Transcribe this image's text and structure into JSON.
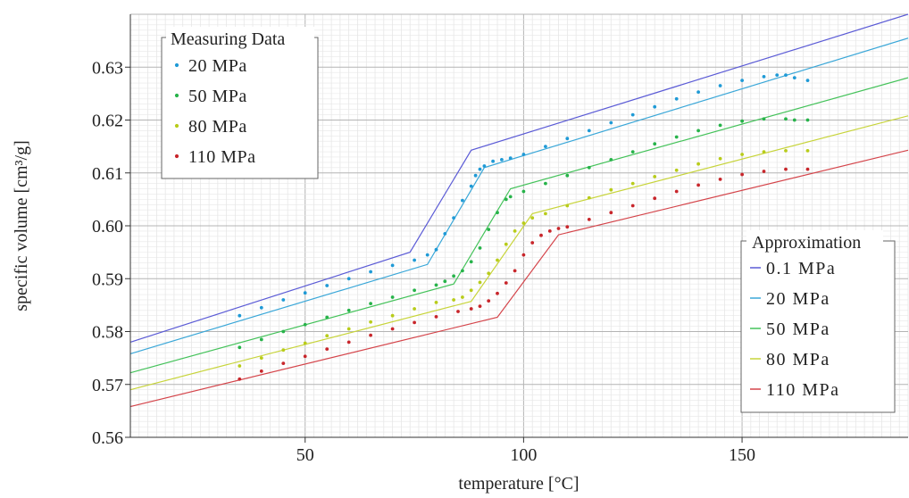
{
  "chart_data": {
    "type": "scatter",
    "xlabel": "temperature [°C]",
    "ylabel": "specific volume [cm³/g]",
    "xlim": [
      10,
      188
    ],
    "ylim": [
      0.56,
      0.64
    ],
    "x_ticks": [
      50,
      100,
      150
    ],
    "y_ticks": [
      0.56,
      0.57,
      0.58,
      0.59,
      0.6,
      0.61,
      0.62,
      0.63
    ],
    "y_tick_labels": [
      "0.56",
      "0.57",
      "0.58",
      "0.59",
      "0.60",
      "0.61",
      "0.62",
      "0.63"
    ],
    "grid": true,
    "legends": {
      "measuring": {
        "title": "Measuring Data",
        "position": "top-left"
      },
      "approximation": {
        "title": "Approximation",
        "position": "bottom-right"
      }
    },
    "measured_series": [
      {
        "name": "20 MPa",
        "color": "#1f9ad6",
        "x": [
          35,
          40,
          45,
          50,
          55,
          60,
          65,
          70,
          75,
          78,
          80,
          82,
          84,
          86,
          88,
          89,
          90,
          91,
          93,
          95,
          97,
          100,
          105,
          110,
          115,
          120,
          125,
          130,
          135,
          140,
          145,
          150,
          155,
          158,
          160,
          162,
          165
        ],
        "y": [
          0.583,
          0.5845,
          0.586,
          0.5873,
          0.5887,
          0.59,
          0.5913,
          0.5925,
          0.5935,
          0.5945,
          0.5955,
          0.5985,
          0.6015,
          0.6048,
          0.6075,
          0.6095,
          0.6107,
          0.6113,
          0.6122,
          0.6125,
          0.6128,
          0.6135,
          0.615,
          0.6165,
          0.618,
          0.6195,
          0.621,
          0.6225,
          0.624,
          0.6253,
          0.6265,
          0.6275,
          0.6282,
          0.6285,
          0.6285,
          0.628,
          0.6275
        ]
      },
      {
        "name": "50 MPa",
        "color": "#27b34a",
        "x": [
          35,
          40,
          45,
          50,
          55,
          60,
          65,
          70,
          75,
          80,
          82,
          84,
          86,
          88,
          90,
          92,
          94,
          96,
          97,
          100,
          105,
          110,
          115,
          120,
          125,
          130,
          135,
          140,
          145,
          150,
          155,
          160,
          162,
          165
        ],
        "y": [
          0.577,
          0.5785,
          0.58,
          0.5813,
          0.5827,
          0.584,
          0.5853,
          0.5865,
          0.5878,
          0.5888,
          0.5895,
          0.5905,
          0.5915,
          0.5932,
          0.5958,
          0.5993,
          0.6025,
          0.605,
          0.6055,
          0.6065,
          0.608,
          0.6095,
          0.611,
          0.6125,
          0.614,
          0.6155,
          0.6168,
          0.618,
          0.619,
          0.6198,
          0.6202,
          0.6202,
          0.62,
          0.62
        ]
      },
      {
        "name": "80 MPa",
        "color": "#b8cc1a",
        "x": [
          35,
          40,
          45,
          50,
          55,
          60,
          65,
          70,
          75,
          80,
          84,
          86,
          88,
          90,
          92,
          94,
          96,
          98,
          100,
          102,
          105,
          110,
          115,
          120,
          125,
          130,
          135,
          140,
          145,
          150,
          155,
          160,
          165
        ],
        "y": [
          0.5735,
          0.575,
          0.5765,
          0.5778,
          0.5792,
          0.5805,
          0.5818,
          0.583,
          0.5843,
          0.5855,
          0.586,
          0.5865,
          0.5878,
          0.5893,
          0.591,
          0.5935,
          0.5965,
          0.599,
          0.6005,
          0.6015,
          0.6023,
          0.6038,
          0.6053,
          0.6068,
          0.608,
          0.6093,
          0.6105,
          0.6117,
          0.6127,
          0.6135,
          0.614,
          0.6142,
          0.6142
        ]
      },
      {
        "name": "110 MPa",
        "color": "#c8262b",
        "x": [
          35,
          40,
          45,
          50,
          55,
          60,
          65,
          70,
          75,
          80,
          85,
          88,
          90,
          92,
          94,
          96,
          98,
          100,
          102,
          104,
          106,
          108,
          110,
          115,
          120,
          125,
          130,
          135,
          140,
          145,
          150,
          155,
          160,
          165
        ],
        "y": [
          0.571,
          0.5725,
          0.574,
          0.5753,
          0.5767,
          0.578,
          0.5793,
          0.5805,
          0.5817,
          0.5828,
          0.5838,
          0.5843,
          0.5848,
          0.5858,
          0.5872,
          0.5892,
          0.5915,
          0.5945,
          0.5968,
          0.5982,
          0.599,
          0.5995,
          0.5998,
          0.6012,
          0.6025,
          0.6038,
          0.6052,
          0.6065,
          0.6077,
          0.6088,
          0.6097,
          0.6103,
          0.6107,
          0.6107
        ]
      }
    ],
    "approximation_series": [
      {
        "name": "0.1 MPa",
        "color": "#5b5bd6",
        "x": [
          10,
          74,
          88,
          188
        ],
        "y": [
          0.578,
          0.595,
          0.6143,
          0.64
        ]
      },
      {
        "name": "20 MPa",
        "color": "#3aa7d8",
        "x": [
          10,
          78,
          91,
          188
        ],
        "y": [
          0.5758,
          0.5927,
          0.611,
          0.6355
        ]
      },
      {
        "name": "50 MPa",
        "color": "#44c25a",
        "x": [
          10,
          84,
          97,
          188
        ],
        "y": [
          0.5722,
          0.589,
          0.607,
          0.628
        ]
      },
      {
        "name": "80 MPa",
        "color": "#c7d43a",
        "x": [
          10,
          88,
          102,
          188
        ],
        "y": [
          0.569,
          0.5857,
          0.6023,
          0.6208
        ]
      },
      {
        "name": "110 MPa",
        "color": "#d4444a",
        "x": [
          10,
          94,
          108,
          188
        ],
        "y": [
          0.5658,
          0.5827,
          0.5983,
          0.6143
        ]
      }
    ]
  }
}
